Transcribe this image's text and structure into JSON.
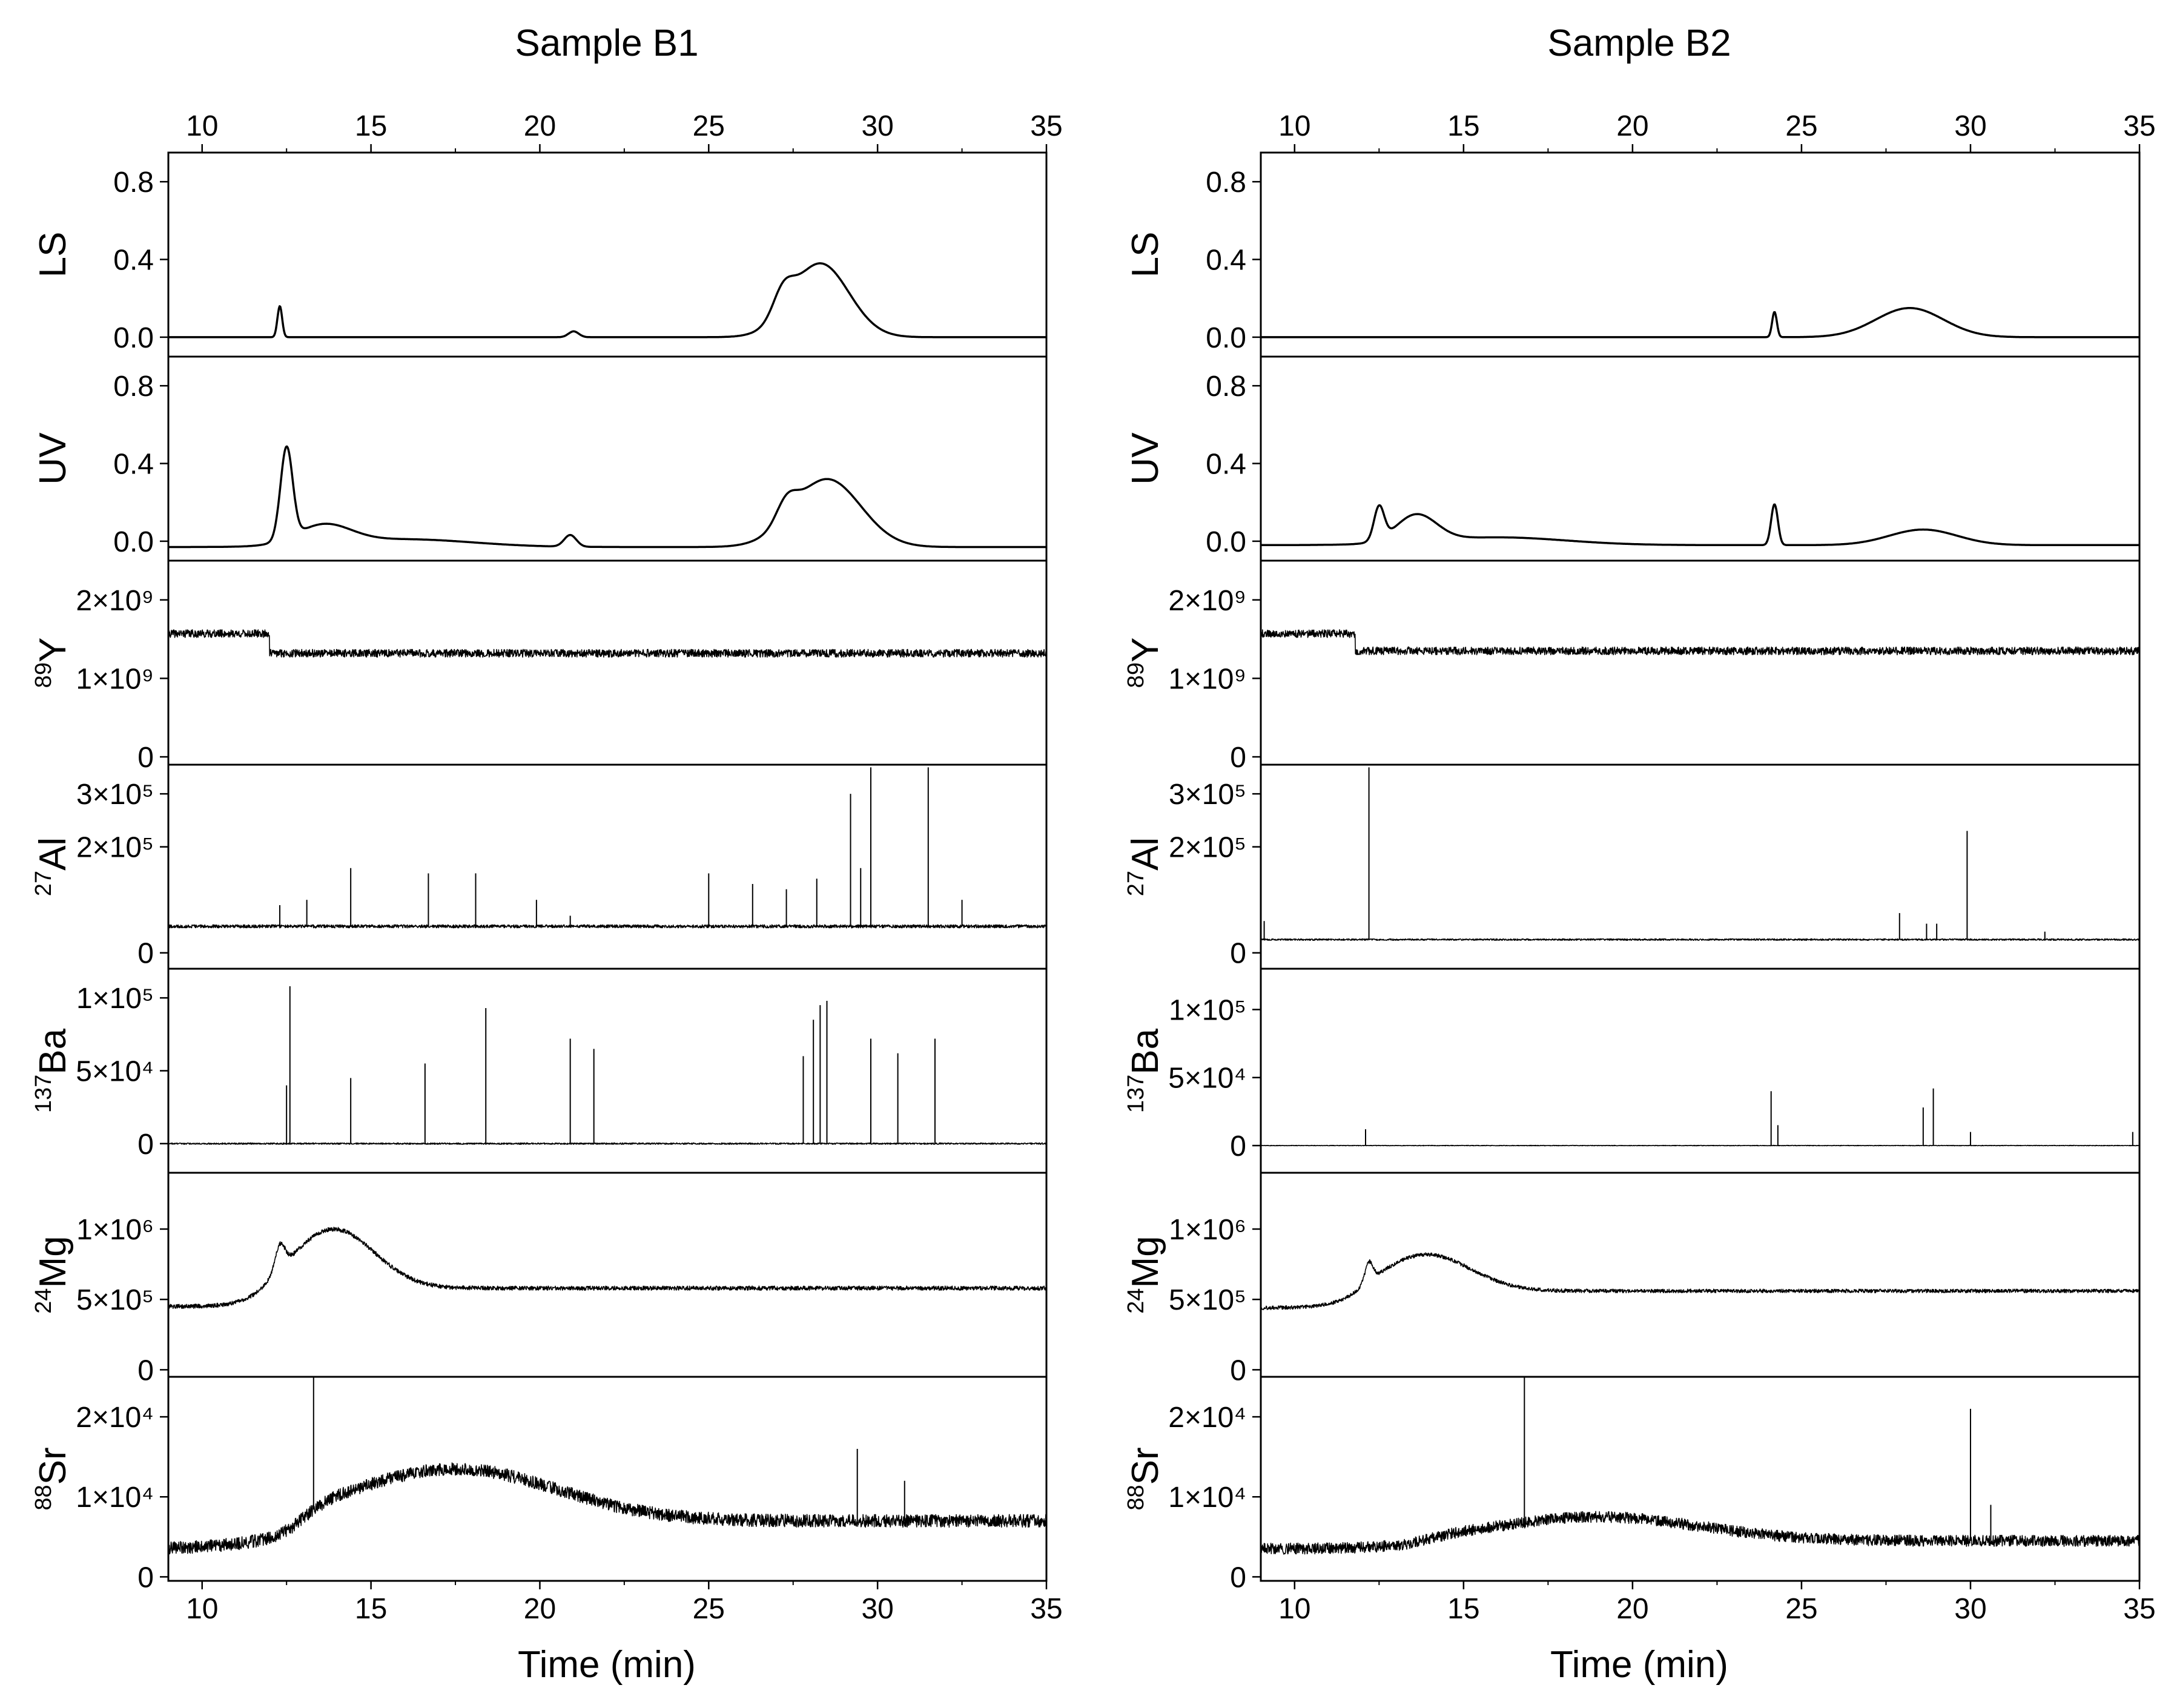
{
  "figure": {
    "x_axis_label": "Time (min)"
  },
  "chart_data": [
    {
      "type": "line",
      "title": "Sample B1",
      "xlabel": "Time (min)",
      "xlim": [
        9,
        35
      ],
      "xticks": [
        10,
        15,
        20,
        25,
        30,
        35
      ],
      "xtick_labels": [
        "10",
        "15",
        "20",
        "25",
        "30",
        "35"
      ],
      "panels": [
        {
          "ylabel_iso": "",
          "ylabel_el": "LS",
          "ylim": [
            -0.1,
            0.95
          ],
          "yticks": [
            0.0,
            0.4,
            0.8
          ],
          "ytick_labels": [
            "0.0",
            "0.4",
            "0.8"
          ],
          "series": {
            "baseline": 0.0,
            "drift": 0.0,
            "noise": 0.0,
            "peaks": [
              [
                12.3,
                0.16,
                0.07
              ],
              [
                21.0,
                0.03,
                0.15
              ],
              [
                27.2,
                0.12,
                0.3
              ],
              [
                28.3,
                0.38,
                0.85
              ]
            ],
            "spikes": []
          }
        },
        {
          "ylabel_iso": "",
          "ylabel_el": "UV",
          "ylim": [
            -0.1,
            0.95
          ],
          "yticks": [
            0.0,
            0.4,
            0.8
          ],
          "ytick_labels": [
            "0.0",
            "0.4",
            "0.8"
          ],
          "series": {
            "baseline": -0.03,
            "drift": 0.0,
            "noise": 0.0,
            "peaks": [
              [
                12.5,
                0.47,
                0.18
              ],
              [
                13.6,
                0.1,
                0.8
              ],
              [
                16.0,
                0.04,
                2.0
              ],
              [
                20.9,
                0.06,
                0.18
              ],
              [
                27.3,
                0.1,
                0.3
              ],
              [
                28.5,
                0.35,
                1.0
              ]
            ],
            "spikes": []
          }
        },
        {
          "ylabel_iso": "89",
          "ylabel_el": "Y",
          "ylim": [
            -100000000.0,
            2500000000.0
          ],
          "yticks": [
            0,
            1000000000.0,
            2000000000.0
          ],
          "ytick_labels": [
            "0",
            "1×10⁹",
            "2×10⁹"
          ],
          "series": {
            "step": [
              12.0,
              1570000000.0,
              1320000000.0
            ],
            "noise": 50000000.0,
            "peaks": [],
            "spikes": []
          }
        },
        {
          "ylabel_iso": "27",
          "ylabel_el": "Al",
          "ylim": [
            -30000.0,
            355000.0
          ],
          "yticks": [
            0,
            200000.0,
            300000.0
          ],
          "ytick_labels": [
            "0",
            "2×10⁵",
            "3×10⁵"
          ],
          "series": {
            "baseline": 50000.0,
            "noise": 3000.0,
            "peaks": [],
            "spikes": [
              [
                12.3,
                90000.0
              ],
              [
                13.1,
                100000.0
              ],
              [
                14.4,
                160000.0
              ],
              [
                16.7,
                150000.0
              ],
              [
                18.1,
                150000.0
              ],
              [
                19.9,
                100000.0
              ],
              [
                20.9,
                70000.0
              ],
              [
                25.0,
                150000.0
              ],
              [
                26.3,
                130000.0
              ],
              [
                27.3,
                120000.0
              ],
              [
                28.2,
                140000.0
              ],
              [
                29.2,
                300000.0
              ],
              [
                29.5,
                160000.0
              ],
              [
                29.8,
                350000.0
              ],
              [
                31.5,
                350000.0
              ],
              [
                32.5,
                100000.0
              ]
            ]
          }
        },
        {
          "ylabel_iso": "137",
          "ylabel_el": "Ba",
          "ylim": [
            -20000.0,
            120000.0
          ],
          "yticks": [
            0,
            50000.0,
            100000.0
          ],
          "ytick_labels": [
            "0",
            "5×10⁴",
            "1×10⁵"
          ],
          "series": {
            "baseline": 0.0,
            "noise": 500.0,
            "peaks": [],
            "spikes": [
              [
                12.5,
                40000.0
              ],
              [
                12.6,
                108000.0
              ],
              [
                14.4,
                45000.0
              ],
              [
                16.6,
                55000.0
              ],
              [
                18.4,
                93000.0
              ],
              [
                20.9,
                72000.0
              ],
              [
                21.6,
                65000.0
              ],
              [
                27.8,
                60000.0
              ],
              [
                28.1,
                85000.0
              ],
              [
                28.3,
                95000.0
              ],
              [
                28.5,
                98000.0
              ],
              [
                29.8,
                72000.0
              ],
              [
                30.6,
                62000.0
              ],
              [
                31.7,
                72000.0
              ]
            ]
          }
        },
        {
          "ylabel_iso": "24",
          "ylabel_el": "Mg",
          "ylim": [
            -50000.0,
            1400000.0
          ],
          "yticks": [
            0,
            500000.0,
            1000000.0
          ],
          "ytick_labels": [
            "0",
            "5×10⁵",
            "1×10⁶"
          ],
          "series": {
            "baseline": 450000.0,
            "noise": 15000.0,
            "rise": [
              12.0,
              580000.0
            ],
            "peaks": [
              [
                12.3,
                180000.0,
                0.15
              ],
              [
                13.9,
                420000.0,
                1.2
              ]
            ],
            "spikes": []
          }
        },
        {
          "ylabel_iso": "88",
          "ylabel_el": "Sr",
          "ylim": [
            -500.0,
            25000.0
          ],
          "yticks": [
            0,
            10000.0,
            20000.0
          ],
          "ytick_labels": [
            "0",
            "1×10⁴",
            "2×10⁴"
          ],
          "series": {
            "baseline": 3500.0,
            "noise": 800.0,
            "rise": [
              13.0,
              7000.0
            ],
            "peaks": [
              [
                17.5,
                6500.0,
                3.0
              ]
            ],
            "spikes": [
              [
                13.3,
                25000.0
              ],
              [
                29.4,
                16000.0
              ],
              [
                30.8,
                12000.0
              ]
            ]
          }
        }
      ]
    },
    {
      "type": "line",
      "title": "Sample B2",
      "xlabel": "Time (min)",
      "xlim": [
        9,
        35
      ],
      "xticks": [
        10,
        15,
        20,
        25,
        30,
        35
      ],
      "xtick_labels": [
        "10",
        "15",
        "20",
        "25",
        "30",
        "35"
      ],
      "panels": [
        {
          "ylabel_iso": "",
          "ylabel_el": "LS",
          "ylim": [
            -0.1,
            0.95
          ],
          "yticks": [
            0.0,
            0.4,
            0.8
          ],
          "ytick_labels": [
            "0.0",
            "0.4",
            "0.8"
          ],
          "series": {
            "baseline": 0.0,
            "noise": 0.0,
            "peaks": [
              [
                24.2,
                0.13,
                0.07
              ],
              [
                28.2,
                0.15,
                1.0
              ]
            ],
            "spikes": []
          }
        },
        {
          "ylabel_iso": "",
          "ylabel_el": "UV",
          "ylim": [
            -0.1,
            0.95
          ],
          "yticks": [
            0.0,
            0.4,
            0.8
          ],
          "ytick_labels": [
            "0.0",
            "0.4",
            "0.8"
          ],
          "series": {
            "baseline": -0.02,
            "noise": 0.0,
            "peaks": [
              [
                12.5,
                0.17,
                0.15
              ],
              [
                13.6,
                0.14,
                0.6
              ],
              [
                16.0,
                0.04,
                2.0
              ],
              [
                24.2,
                0.21,
                0.1
              ],
              [
                28.6,
                0.08,
                1.0
              ]
            ],
            "spikes": []
          }
        },
        {
          "ylabel_iso": "89",
          "ylabel_el": "Y",
          "ylim": [
            -100000000.0,
            2500000000.0
          ],
          "yticks": [
            0,
            1000000000.0,
            2000000000.0
          ],
          "ytick_labels": [
            "0",
            "1×10⁹",
            "2×10⁹"
          ],
          "series": {
            "step": [
              11.8,
              1570000000.0,
              1350000000.0
            ],
            "noise": 50000000.0,
            "peaks": [],
            "spikes": []
          }
        },
        {
          "ylabel_iso": "27",
          "ylabel_el": "Al",
          "ylim": [
            -30000.0,
            355000.0
          ],
          "yticks": [
            0,
            200000.0,
            300000.0
          ],
          "ytick_labels": [
            "0",
            "2×10⁵",
            "3×10⁵"
          ],
          "series": {
            "baseline": 25000.0,
            "noise": 1500.0,
            "peaks": [],
            "spikes": [
              [
                9.1,
                60000.0
              ],
              [
                12.2,
                350000.0
              ],
              [
                27.9,
                75000.0
              ],
              [
                28.7,
                55000.0
              ],
              [
                29.0,
                55000.0
              ],
              [
                29.9,
                230000.0
              ],
              [
                32.2,
                40000.0
              ]
            ]
          }
        },
        {
          "ylabel_iso": "137",
          "ylabel_el": "Ba",
          "ylim": [
            -20000.0,
            130000.0
          ],
          "yticks": [
            0,
            50000.0,
            100000.0
          ],
          "ytick_labels": [
            "0",
            "5×10⁴",
            "1×10⁵"
          ],
          "series": {
            "baseline": 0.0,
            "noise": 200.0,
            "peaks": [],
            "spikes": [
              [
                12.1,
                12000.0
              ],
              [
                24.1,
                40000.0
              ],
              [
                24.3,
                15000.0
              ],
              [
                28.6,
                28000.0
              ],
              [
                28.9,
                42000.0
              ],
              [
                30.0,
                10000.0
              ],
              [
                34.8,
                10000.0
              ]
            ]
          }
        },
        {
          "ylabel_iso": "24",
          "ylabel_el": "Mg",
          "ylim": [
            -50000.0,
            1400000.0
          ],
          "yticks": [
            0,
            500000.0,
            1000000.0
          ],
          "ytick_labels": [
            "0",
            "5×10⁵",
            "1×10⁶"
          ],
          "series": {
            "baseline": 440000.0,
            "noise": 13000.0,
            "rise": [
              12.0,
              560000.0
            ],
            "peaks": [
              [
                12.2,
                140000.0,
                0.12
              ],
              [
                13.9,
                260000.0,
                1.3
              ]
            ],
            "spikes": []
          }
        },
        {
          "ylabel_iso": "88",
          "ylabel_el": "Sr",
          "ylim": [
            -500.0,
            25000.0
          ],
          "yticks": [
            0,
            10000.0,
            20000.0
          ],
          "ytick_labels": [
            "0",
            "1×10⁴",
            "2×10⁴"
          ],
          "series": {
            "baseline": 3500.0,
            "noise": 700.0,
            "rise": [
              14.0,
              4500.0
            ],
            "peaks": [
              [
                19.0,
                3000.0,
                3.0
              ]
            ],
            "spikes": [
              [
                16.8,
                25000.0
              ],
              [
                30.0,
                21000.0
              ],
              [
                30.6,
                9000.0
              ]
            ]
          }
        }
      ]
    }
  ]
}
